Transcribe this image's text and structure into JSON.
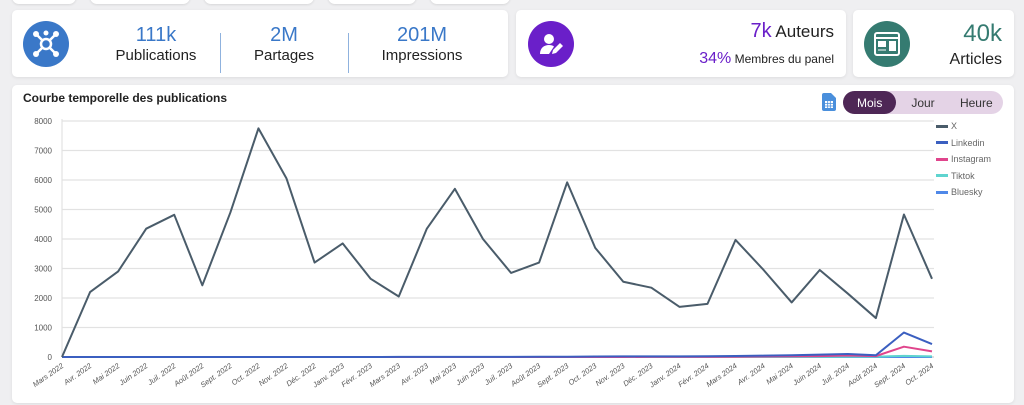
{
  "stats": {
    "publications": {
      "value": "111k",
      "label": "Publications"
    },
    "partages": {
      "value": "2M",
      "label": "Partages"
    },
    "impressions": {
      "value": "201M",
      "label": "Impressions"
    }
  },
  "authors": {
    "value": "7k",
    "label": "Auteurs",
    "percent": "34%",
    "percent_label": "Membres du panel"
  },
  "articles": {
    "value": "40k",
    "label": "Articles"
  },
  "chart_title": "Courbe temporelle des publications",
  "toggle": [
    "Mois",
    "Jour",
    "Heure"
  ],
  "colors": {
    "blue": "#3a78c8",
    "purple": "#6a1fc9",
    "teal": "#357b71"
  },
  "chart_data": {
    "type": "line",
    "title": "Courbe temporelle des publications",
    "categories": [
      "Mars 2022",
      "Avr. 2022",
      "Mai 2022",
      "Juin 2022",
      "Juil. 2022",
      "Août 2022",
      "Sept. 2022",
      "Oct. 2022",
      "Nov. 2022",
      "Déc. 2022",
      "Janv. 2023",
      "Févr. 2023",
      "Mars 2023",
      "Avr. 2023",
      "Mai 2023",
      "Juin 2023",
      "Juil. 2023",
      "Août 2023",
      "Sept. 2023",
      "Oct. 2023",
      "Nov. 2023",
      "Déc. 2023",
      "Janv. 2024",
      "Févr. 2024",
      "Mars 2024",
      "Avr. 2024",
      "Mai 2024",
      "Juin 2024",
      "Juil. 2024",
      "Août 2024",
      "Sept. 2024",
      "Oct. 2024"
    ],
    "ylim": [
      0,
      8000
    ],
    "yticks": [
      0,
      1000,
      2000,
      3000,
      4000,
      5000,
      6000,
      7000,
      8000
    ],
    "legend_position": "right",
    "series": [
      {
        "name": "X",
        "color": "#4a5c6a",
        "values": [
          0,
          2200,
          2900,
          4350,
          4820,
          2430,
          4900,
          7750,
          6050,
          3200,
          3850,
          2650,
          2050,
          4350,
          5700,
          4000,
          2850,
          3200,
          5920,
          3700,
          2550,
          2350,
          1700,
          1800,
          3970,
          2950,
          1850,
          2950,
          2150,
          1320,
          4830,
          2650
        ]
      },
      {
        "name": "Linkedin",
        "color": "#3b5fc0",
        "values": [
          0,
          0,
          0,
          0,
          0,
          0,
          0,
          0,
          0,
          0,
          0,
          0,
          5,
          5,
          5,
          5,
          5,
          10,
          10,
          15,
          20,
          20,
          20,
          25,
          35,
          45,
          60,
          80,
          100,
          60,
          830,
          440
        ]
      },
      {
        "name": "Instagram",
        "color": "#e0458c",
        "values": [
          0,
          0,
          0,
          0,
          0,
          0,
          0,
          0,
          0,
          0,
          0,
          0,
          0,
          0,
          0,
          0,
          0,
          0,
          0,
          0,
          0,
          5,
          5,
          5,
          10,
          15,
          20,
          30,
          50,
          30,
          350,
          190
        ]
      },
      {
        "name": "Tiktok",
        "color": "#5fd4cf",
        "values": [
          0,
          0,
          0,
          0,
          0,
          0,
          0,
          0,
          0,
          0,
          0,
          0,
          0,
          0,
          0,
          0,
          0,
          0,
          0,
          0,
          0,
          0,
          0,
          0,
          0,
          0,
          0,
          5,
          10,
          10,
          40,
          20
        ]
      },
      {
        "name": "Bluesky",
        "color": "#4f88e8",
        "values": [
          0,
          0,
          0,
          0,
          0,
          0,
          0,
          0,
          0,
          0,
          0,
          0,
          0,
          0,
          0,
          0,
          0,
          0,
          0,
          0,
          0,
          0,
          0,
          0,
          0,
          0,
          0,
          0,
          0,
          0,
          0,
          0
        ]
      }
    ]
  }
}
